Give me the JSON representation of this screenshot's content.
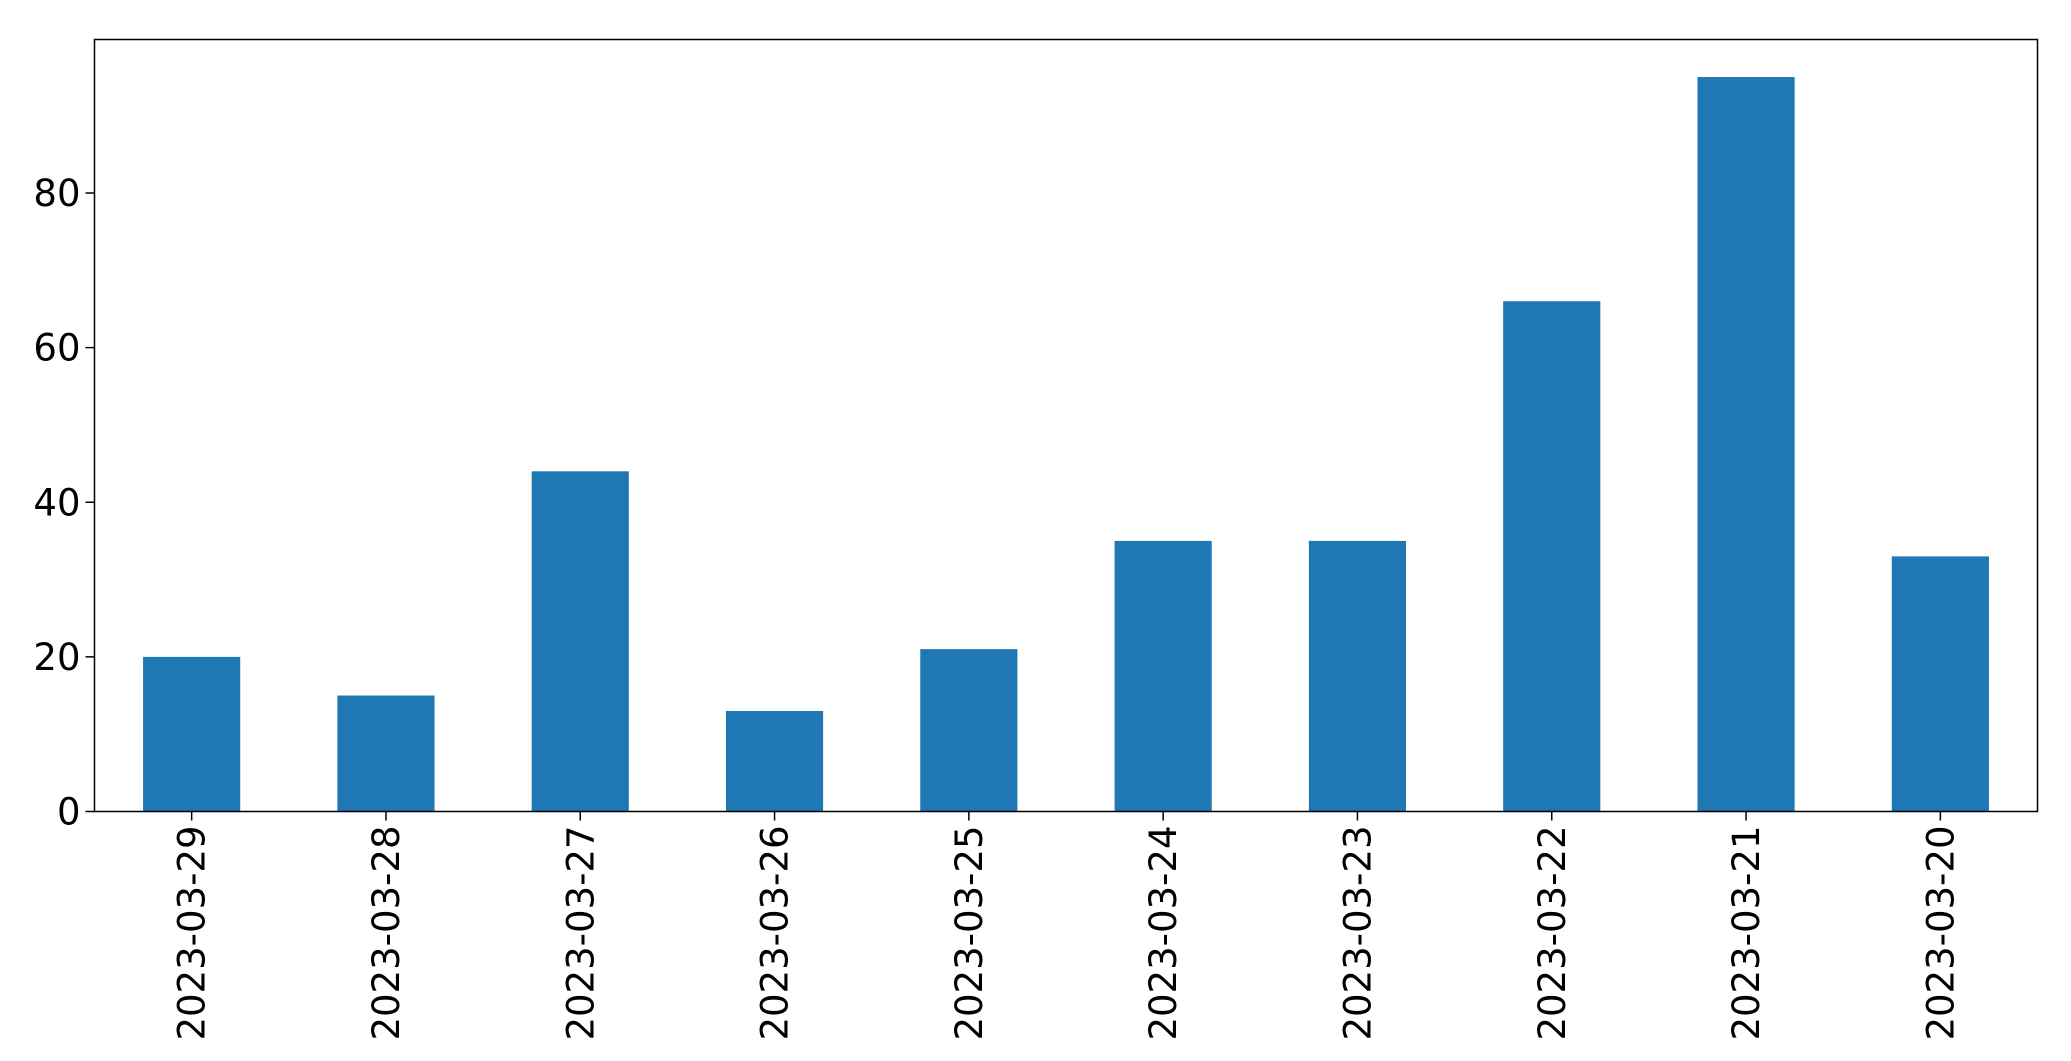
{
  "chart_data": {
    "type": "bar",
    "categories": [
      "2023-03-29",
      "2023-03-28",
      "2023-03-27",
      "2023-03-26",
      "2023-03-25",
      "2023-03-24",
      "2023-03-23",
      "2023-03-22",
      "2023-03-21",
      "2023-03-20"
    ],
    "values": [
      20,
      15,
      44,
      13,
      21,
      35,
      35,
      66,
      95,
      33
    ],
    "title": "",
    "xlabel": "",
    "ylabel": "",
    "ylim": [
      0,
      100
    ],
    "yticks": [
      0,
      20,
      40,
      60,
      80
    ],
    "grid": false,
    "legend": "none",
    "bar_color": "#1f77b4"
  }
}
